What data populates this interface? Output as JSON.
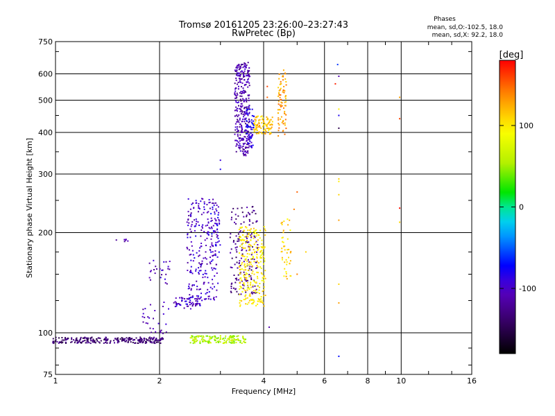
{
  "chart_data": {
    "type": "scatter",
    "title": "Tromsø 20161205 23:26:00–23:27:43",
    "subtitle": "RwPretec (Bp)",
    "xlabel": "Frequency [MHz]",
    "ylabel": "Stationary phase Virtual Height [km]",
    "x_scale": "log",
    "y_scale": "log",
    "xlim": [
      1,
      16
    ],
    "ylim": [
      75,
      750
    ],
    "x_ticks": [
      1,
      2,
      4,
      6,
      8,
      10,
      16
    ],
    "x_tick_labels": [
      "1",
      "2",
      "4",
      "6",
      "8",
      "10",
      "16"
    ],
    "y_ticks": [
      75,
      100,
      200,
      300,
      400,
      500,
      600,
      750
    ],
    "y_tick_labels": [
      "75",
      "100",
      "200",
      "300",
      "400",
      "500",
      "600",
      "750"
    ],
    "grid": true,
    "phases_box": {
      "title": "Phases",
      "line1": "mean, sd,O:-102.5, 18.0",
      "line2": "mean, sd,X:  92.2, 18.0"
    },
    "colorbar": {
      "label": "[deg]",
      "range": [
        -180,
        180
      ],
      "ticks": [
        100,
        0,
        -100
      ],
      "tick_labels": [
        "100",
        "0",
        "-100"
      ]
    },
    "point_groups": [
      {
        "f": [
          0.98,
          2.05
        ],
        "h": [
          93,
          97
        ],
        "phase": -135,
        "n": 260
      },
      {
        "f": [
          1.78,
          2.15
        ],
        "h": [
          95,
          125
        ],
        "phase": -110,
        "n": 30
      },
      {
        "f": [
          1.85,
          2.15
        ],
        "h": [
          140,
          165
        ],
        "phase": -105,
        "n": 25
      },
      {
        "f": [
          1.58,
          1.62
        ],
        "h": [
          188,
          192
        ],
        "phase": -110,
        "n": 6
      },
      {
        "f": [
          2.2,
          2.65
        ],
        "h": [
          118,
          128
        ],
        "phase": -100,
        "n": 60
      },
      {
        "f": [
          2.4,
          2.95
        ],
        "h": [
          125,
          255
        ],
        "phase": -100,
        "n": 240
      },
      {
        "f": [
          2.8,
          3.0
        ],
        "h": [
          170,
          240
        ],
        "phase": -90,
        "n": 40
      },
      {
        "f": [
          2.45,
          3.55
        ],
        "h": [
          93,
          98
        ],
        "phase": 55,
        "n": 150
      },
      {
        "f": [
          3.3,
          3.65
        ],
        "h": [
          340,
          650
        ],
        "phase": -110,
        "n": 320
      },
      {
        "f": [
          3.55,
          3.75
        ],
        "h": [
          360,
          470
        ],
        "phase": -85,
        "n": 60
      },
      {
        "f": [
          3.2,
          3.85
        ],
        "h": [
          130,
          240
        ],
        "phase": -125,
        "n": 170
      },
      {
        "f": [
          3.4,
          4.05
        ],
        "h": [
          120,
          210
        ],
        "phase": 100,
        "n": 260
      },
      {
        "f": [
          3.75,
          4.25
        ],
        "h": [
          395,
          450
        ],
        "phase": 115,
        "n": 90
      },
      {
        "f": [
          4.4,
          4.65
        ],
        "h": [
          390,
          620
        ],
        "phase": 130,
        "n": 80
      },
      {
        "f": [
          4.5,
          4.8
        ],
        "h": [
          145,
          220
        ],
        "phase": 110,
        "n": 45
      }
    ],
    "points": [
      {
        "x": 4.1,
        "y": 550,
        "phase": 160
      },
      {
        "x": 4.1,
        "y": 510,
        "phase": 150
      },
      {
        "x": 5.0,
        "y": 265,
        "phase": 150
      },
      {
        "x": 4.9,
        "y": 235,
        "phase": 140
      },
      {
        "x": 6.45,
        "y": 560,
        "phase": 170
      },
      {
        "x": 6.55,
        "y": 640,
        "phase": -60
      },
      {
        "x": 6.6,
        "y": 590,
        "phase": -110
      },
      {
        "x": 6.6,
        "y": 470,
        "phase": 100
      },
      {
        "x": 6.6,
        "y": 450,
        "phase": -80
      },
      {
        "x": 6.6,
        "y": 412,
        "phase": -150
      },
      {
        "x": 6.6,
        "y": 290,
        "phase": 110
      },
      {
        "x": 6.6,
        "y": 285,
        "phase": 100
      },
      {
        "x": 6.6,
        "y": 260,
        "phase": 110
      },
      {
        "x": 6.6,
        "y": 218,
        "phase": 130
      },
      {
        "x": 6.6,
        "y": 140,
        "phase": 110
      },
      {
        "x": 6.6,
        "y": 123,
        "phase": 130
      },
      {
        "x": 6.6,
        "y": 85,
        "phase": -70
      },
      {
        "x": 9.9,
        "y": 510,
        "phase": 130
      },
      {
        "x": 9.9,
        "y": 440,
        "phase": 160
      },
      {
        "x": 9.9,
        "y": 237,
        "phase": 175
      },
      {
        "x": 9.9,
        "y": 215,
        "phase": 110
      },
      {
        "x": 4.15,
        "y": 104,
        "phase": -110
      },
      {
        "x": 3.0,
        "y": 310,
        "phase": -80
      },
      {
        "x": 3.0,
        "y": 330,
        "phase": -90
      },
      {
        "x": 1.5,
        "y": 190,
        "phase": -120
      },
      {
        "x": 5.3,
        "y": 175,
        "phase": 110
      },
      {
        "x": 5.0,
        "y": 150,
        "phase": 140
      }
    ]
  }
}
